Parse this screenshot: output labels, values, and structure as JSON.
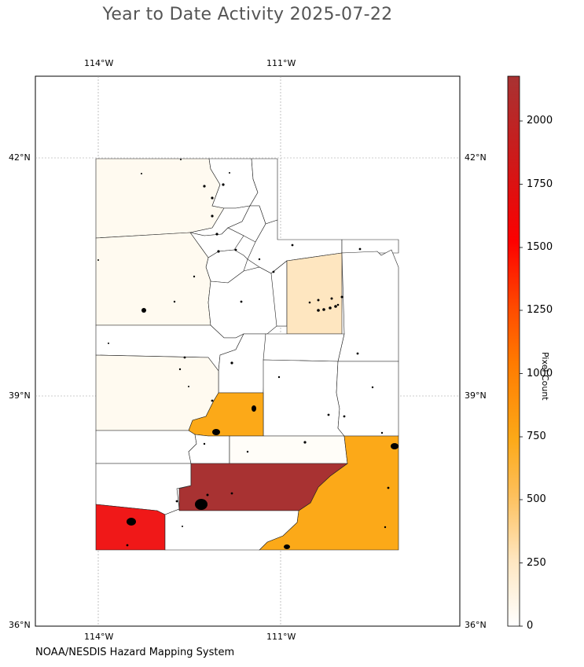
{
  "title": "Year to Date Activity 2025-07-22",
  "credit": "NOAA/NESDIS Hazard Mapping System",
  "colorbar": {
    "label": "Pixel Count",
    "ticks": [
      "0",
      "250",
      "500",
      "750",
      "1000",
      "1250",
      "1500",
      "1750",
      "2000"
    ]
  },
  "axes": {
    "lon_ticks": [
      "114°W",
      "111°W"
    ],
    "lat_ticks": [
      "42°N",
      "39°N",
      "36°N"
    ]
  },
  "colors": {
    "max": "#a83232",
    "red": "#f01818",
    "orange": "#fca918",
    "light_orange": "#fee6c0",
    "pale": "#fffaf0"
  }
}
